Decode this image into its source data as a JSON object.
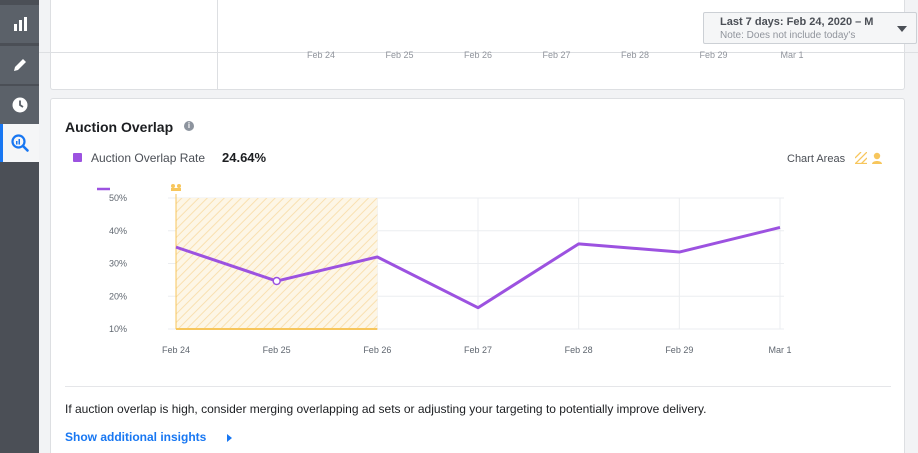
{
  "sidebar": {
    "items": [
      {
        "icon": "bar-chart-icon",
        "active": false
      },
      {
        "icon": "pencil-icon",
        "active": false
      },
      {
        "icon": "clock-icon",
        "active": false
      },
      {
        "icon": "audience-insights-icon",
        "active": true
      }
    ]
  },
  "date_range": {
    "label": "Last 7 days: Feb 24, 2020 – M",
    "note": "Note: Does not include today's"
  },
  "top_chart": {
    "x_labels": [
      "Feb 24",
      "Feb 25",
      "Feb 26",
      "Feb 27",
      "Feb 28",
      "Feb 29",
      "Mar 1"
    ]
  },
  "card": {
    "title": "Auction Overlap",
    "info_icon": "info-icon",
    "legend_label": "Auction Overlap Rate",
    "legend_value": "24.64%",
    "chart_areas_label": "Chart Areas",
    "insight_text": "If auction overlap is high, consider merging overlapping ad sets or adjusting your targeting to potentially improve delivery.",
    "show_more_label": "Show additional insights"
  },
  "colors": {
    "series": "#9c52e0",
    "highlight_area": "#f7c65c",
    "link": "#1877f2"
  },
  "chart_data": {
    "type": "line",
    "x": [
      "Feb 24",
      "Feb 25",
      "Feb 26",
      "Feb 27",
      "Feb 28",
      "Feb 29",
      "Mar 1"
    ],
    "series": [
      {
        "name": "Auction Overlap Rate",
        "values": [
          35,
          24.64,
          32,
          16.5,
          36,
          33.5,
          41
        ]
      }
    ],
    "y_ticks": [
      "10%",
      "20%",
      "30%",
      "40%",
      "50%"
    ],
    "y_tick_values": [
      10,
      20,
      30,
      40,
      50
    ],
    "ylim": [
      10,
      50
    ],
    "highlighted_point": "Feb 25",
    "highlight_area": {
      "from": "Feb 24",
      "to": "Feb 26"
    },
    "grid": true
  }
}
